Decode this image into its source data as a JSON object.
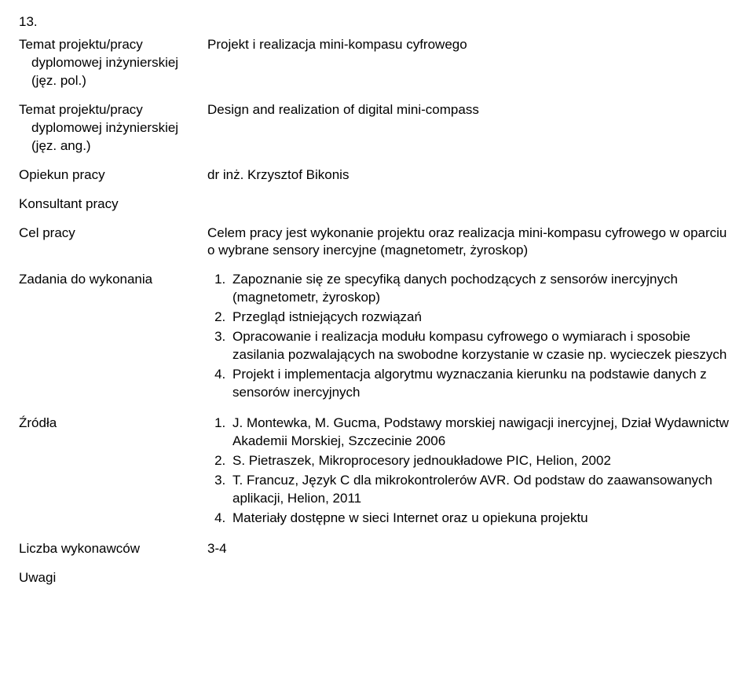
{
  "item_number": "13.",
  "rows": {
    "topic_pl": {
      "label": "Temat projektu/pracy dyplomowej inżynierskiej (jęz. pol.)",
      "value": "Projekt i realizacja mini-kompasu cyfrowego"
    },
    "topic_en": {
      "label": "Temat projektu/pracy dyplomowej inżynierskiej (jęz. ang.)",
      "value": "Design and realization of digital mini-compass"
    },
    "supervisor": {
      "label": "Opiekun pracy",
      "value": "dr inż. Krzysztof Bikonis"
    },
    "consultant": {
      "label": "Konsultant pracy",
      "value": ""
    },
    "goal": {
      "label": "Cel pracy",
      "value": "Celem pracy jest wykonanie projektu oraz realizacja mini-kompasu cyfrowego w oparciu o wybrane sensory inercyjne (magnetometr, żyroskop)"
    },
    "tasks": {
      "label": "Zadania do wykonania",
      "items": [
        "Zapoznanie się ze specyfiką danych pochodzących z sensorów inercyjnych (magnetometr, żyroskop)",
        "Przegląd istniejących rozwiązań",
        "Opracowanie i realizacja modułu kompasu cyfrowego o wymiarach i sposobie zasilania pozwalających na swobodne korzystanie w czasie np. wycieczek pieszych",
        "Projekt i implementacja algorytmu wyznaczania kierunku na podstawie danych z sensorów inercyjnych"
      ]
    },
    "sources": {
      "label": "Źródła",
      "items": [
        "J. Montewka, M. Gucma, Podstawy morskiej nawigacji inercyjnej, Dział Wydawnictw Akademii Morskiej, Szczecinie 2006",
        "S. Pietraszek, Mikroprocesory jednoukładowe PIC, Helion, 2002",
        "T. Francuz, Język C dla mikrokontrolerów AVR. Od podstaw do zaawansowanych aplikacji, Helion, 2011",
        "Materiały dostępne w sieci Internet oraz u opiekuna projektu"
      ]
    },
    "authors": {
      "label": "Liczba wykonawców",
      "value": "3-4"
    },
    "notes": {
      "label": "Uwagi",
      "value": ""
    }
  }
}
